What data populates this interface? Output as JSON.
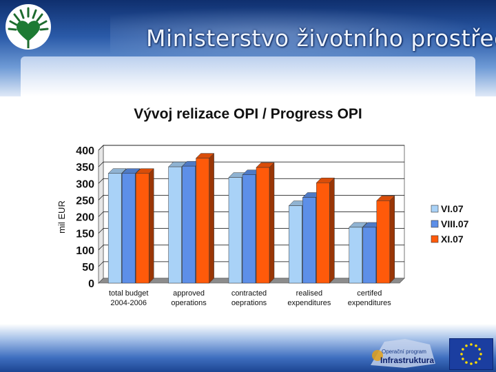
{
  "header": {
    "ministry_title": "Ministerstvo životního prostředí"
  },
  "chart_data": {
    "type": "bar",
    "title": "Vývoj relizace OPI / Progress OPI",
    "ylabel": "mil EUR",
    "xlabel": "",
    "ylim": [
      0,
      400
    ],
    "yticks": [
      0,
      50,
      100,
      150,
      200,
      250,
      300,
      350,
      400
    ],
    "categories": [
      [
        "total budget",
        "2004-2006"
      ],
      [
        "approved",
        "operations"
      ],
      [
        "contracted",
        "oeprations"
      ],
      [
        "realised",
        "expenditures"
      ],
      [
        "certifed",
        "expenditures"
      ]
    ],
    "series": [
      {
        "name": "VI.07",
        "color": "#a9d2f7",
        "values": [
          330,
          350,
          318,
          233,
          168
        ]
      },
      {
        "name": "VIII.07",
        "color": "#5d8fe8",
        "values": [
          330,
          352,
          326,
          258,
          168
        ]
      },
      {
        "name": "XI.07",
        "color": "#ff5a0a",
        "values": [
          330,
          376,
          348,
          302,
          248
        ]
      }
    ],
    "grid": true,
    "legend_position": "right",
    "style": "3d"
  },
  "footer": {
    "op_line1": "Operační program",
    "op_line2": "Infrastruktura"
  }
}
